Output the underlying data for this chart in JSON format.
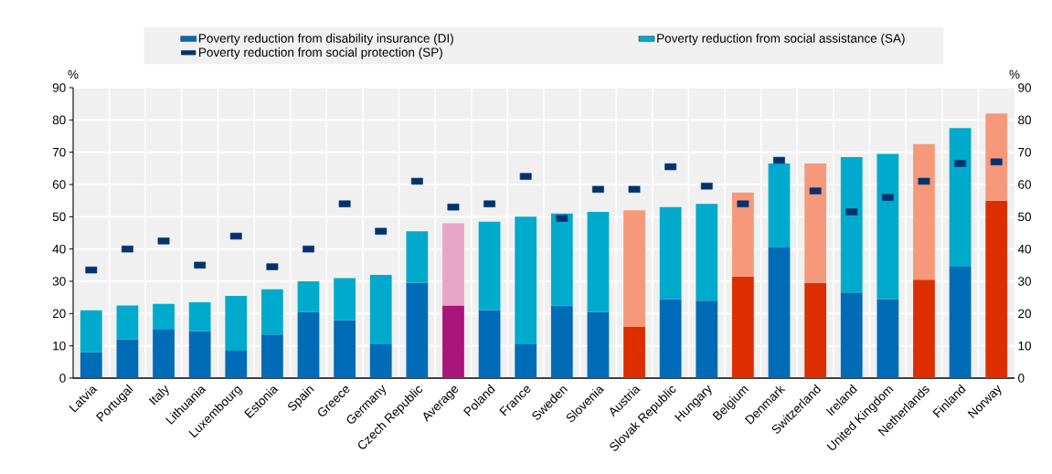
{
  "chart_data": {
    "type": "bar",
    "stacked": true,
    "ylabel": "%",
    "y2label": "%",
    "grid": true,
    "legend": "top",
    "categories": [
      "Latvia",
      "Portugal",
      "Italy",
      "Lithuania",
      "Luxembourg",
      "Estonia",
      "Spain",
      "Greece",
      "Germany",
      "Czech Republic",
      "Average",
      "Poland",
      "France",
      "Sweden",
      "Slovenia",
      "Austria",
      "Slovak Republic",
      "Hungary",
      "Belgium",
      "Denmark",
      "Switzerland",
      "Ireland",
      "United Kingdom",
      "Netherlands",
      "Finland",
      "Norway"
    ],
    "series": [
      {
        "name": "Poverty reduction from disability insurance (DI)",
        "color": "#006bb6",
        "colors": [
          "#006bb6",
          "#006bb6",
          "#006bb6",
          "#006bb6",
          "#006bb6",
          "#006bb6",
          "#006bb6",
          "#006bb6",
          "#006bb6",
          "#006bb6",
          "#a9157a",
          "#006bb6",
          "#006bb6",
          "#006bb6",
          "#006bb6",
          "#dd2e00",
          "#006bb6",
          "#006bb6",
          "#dd2e00",
          "#006bb6",
          "#dd2e00",
          "#006bb6",
          "#006bb6",
          "#dd2e00",
          "#006bb6",
          "#dd2e00"
        ],
        "values": [
          8,
          12,
          15,
          14.5,
          8.5,
          13.5,
          20.5,
          18,
          10.5,
          29.5,
          22.5,
          21,
          10.5,
          22.5,
          20.5,
          16,
          24.5,
          24,
          31.5,
          40.5,
          29.5,
          26.5,
          24.5,
          30.5,
          34.5,
          55
        ]
      },
      {
        "name": "Poverty reduction from social assistance (SA)",
        "color": "#00aacc",
        "colors": [
          "#00aacc",
          "#00aacc",
          "#00aacc",
          "#00aacc",
          "#00aacc",
          "#00aacc",
          "#00aacc",
          "#00aacc",
          "#00aacc",
          "#00aacc",
          "#e8a5c8",
          "#00aacc",
          "#00aacc",
          "#00aacc",
          "#00aacc",
          "#f5997a",
          "#00aacc",
          "#00aacc",
          "#f5997a",
          "#00aacc",
          "#f5997a",
          "#00aacc",
          "#00aacc",
          "#f5997a",
          "#00aacc",
          "#f5997a"
        ],
        "values": [
          13,
          10.5,
          8,
          9,
          17,
          14,
          9.5,
          13,
          21.5,
          16,
          25.5,
          27.5,
          39.5,
          28.5,
          31,
          36,
          28.5,
          30,
          26,
          26,
          37,
          42,
          45,
          42,
          43,
          27
        ]
      },
      {
        "name": "Poverty reduction from social protection (SP)",
        "type": "scatter",
        "marker": "square",
        "color": "#00336e",
        "values": [
          33.5,
          40,
          42.5,
          35,
          44,
          34.5,
          40,
          54,
          45.5,
          61,
          53,
          54,
          62.5,
          49.5,
          58.5,
          58.5,
          65.5,
          59.5,
          54,
          67.5,
          58,
          51.5,
          56,
          61,
          66.5,
          67
        ]
      }
    ],
    "ylim": [
      0,
      90
    ],
    "yticks": [
      0,
      10,
      20,
      30,
      40,
      50,
      60,
      70,
      80,
      90
    ],
    "y2lim": [
      0,
      90
    ],
    "y2ticks": [
      0,
      10,
      20,
      30,
      40,
      50,
      60,
      70,
      80,
      90
    ]
  }
}
